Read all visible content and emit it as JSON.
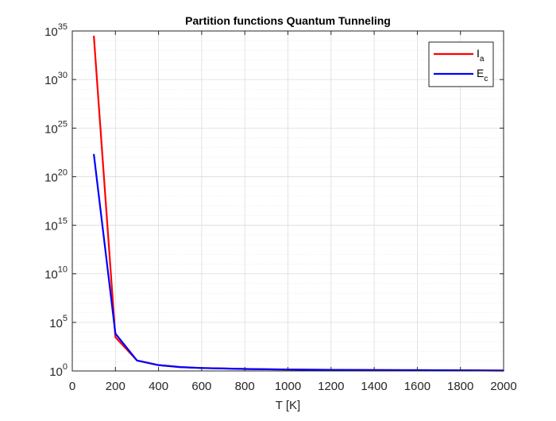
{
  "chart_data": {
    "type": "line",
    "title": "Partition functions Quantum Tunneling",
    "xlabel": "T [K]",
    "ylabel": "",
    "xscale": "linear",
    "yscale": "log",
    "xlim": [
      0,
      2000
    ],
    "ylim": [
      1,
      1e+35
    ],
    "xticks": [
      0,
      200,
      400,
      600,
      800,
      1000,
      1200,
      1400,
      1600,
      1800,
      2000
    ],
    "yticks": [
      {
        "base": "10",
        "exp": "0",
        "value": 1
      },
      {
        "base": "10",
        "exp": "5",
        "value": 100000.0
      },
      {
        "base": "10",
        "exp": "10",
        "value": 10000000000.0
      },
      {
        "base": "10",
        "exp": "15",
        "value": 1000000000000000.0
      },
      {
        "base": "10",
        "exp": "20",
        "value": 1e+20
      },
      {
        "base": "10",
        "exp": "25",
        "value": 1e+25
      },
      {
        "base": "10",
        "exp": "30",
        "value": 1e+30
      },
      {
        "base": "10",
        "exp": "35",
        "value": 1e+35
      }
    ],
    "grid": true,
    "minor_grid": true,
    "legend_position": "top-right",
    "series": [
      {
        "name": "Ia",
        "label_main": "I",
        "label_sub": "a",
        "color": "#ff0000",
        "x": [
          100,
          200,
          300,
          400,
          500,
          600,
          700,
          800,
          900,
          1000,
          1200,
          1400,
          1600,
          1800,
          2000
        ],
        "y": [
          3e+34,
          3000,
          12,
          4,
          2.5,
          2,
          1.8,
          1.6,
          1.5,
          1.4,
          1.3,
          1.25,
          1.2,
          1.15,
          1.1
        ]
      },
      {
        "name": "Ec",
        "label_main": "E",
        "label_sub": "c",
        "color": "#0000ff",
        "x": [
          100,
          200,
          300,
          400,
          500,
          600,
          700,
          800,
          900,
          1000,
          1200,
          1400,
          1600,
          1800,
          2000
        ],
        "y": [
          2e+22,
          7000,
          12,
          4,
          2.5,
          2,
          1.8,
          1.6,
          1.5,
          1.4,
          1.3,
          1.25,
          1.2,
          1.15,
          1.1
        ]
      }
    ]
  }
}
